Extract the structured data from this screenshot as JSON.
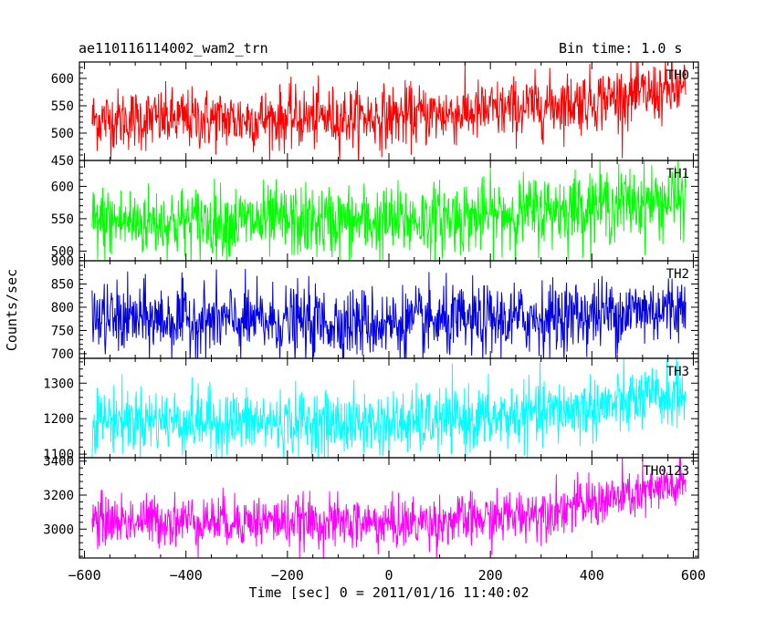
{
  "header": {
    "title": "ae110116114002_wam2_trn",
    "bin_time": "Bin time: 1.0 s"
  },
  "chart_data": {
    "type": "line",
    "xlabel": "Time [sec] 0 = 2011/01/16 11:40:02",
    "ylabel": "Counts/sec",
    "xlim": [
      -610,
      610
    ],
    "x_ticks": [
      -600,
      -400,
      -200,
      0,
      200,
      400,
      600
    ],
    "x_range_data": [
      -585,
      585
    ],
    "bin_time_s": 1.0,
    "panels": [
      {
        "name": "TH0",
        "color": "#ff0000",
        "ylim": [
          450,
          630
        ],
        "y_ticks": [
          450,
          500,
          550,
          600
        ],
        "trend": [
          [
            -585,
            525
          ],
          [
            -300,
            525
          ],
          [
            0,
            530
          ],
          [
            200,
            540
          ],
          [
            400,
            560
          ],
          [
            585,
            580
          ]
        ],
        "noise": 28
      },
      {
        "name": "TH1",
        "color": "#00ff00",
        "ylim": [
          485,
          640
        ],
        "y_ticks": [
          500,
          550,
          600
        ],
        "trend": [
          [
            -585,
            545
          ],
          [
            -300,
            545
          ],
          [
            0,
            545
          ],
          [
            200,
            555
          ],
          [
            400,
            570
          ],
          [
            585,
            580
          ]
        ],
        "noise": 28
      },
      {
        "name": "TH2",
        "color": "#0000e0",
        "ylim": [
          690,
          900
        ],
        "y_ticks": [
          700,
          750,
          800,
          850,
          900
        ],
        "trend": [
          [
            -585,
            775
          ],
          [
            -300,
            770
          ],
          [
            0,
            765
          ],
          [
            200,
            770
          ],
          [
            400,
            785
          ],
          [
            585,
            800
          ]
        ],
        "noise": 38
      },
      {
        "name": "TH3",
        "color": "#00ffff",
        "ylim": [
          1090,
          1370
        ],
        "y_ticks": [
          1100,
          1200,
          1300
        ],
        "trend": [
          [
            -585,
            1200
          ],
          [
            -300,
            1190
          ],
          [
            0,
            1185
          ],
          [
            200,
            1200
          ],
          [
            400,
            1230
          ],
          [
            585,
            1270
          ]
        ],
        "noise": 45
      },
      {
        "name": "TH0123",
        "color": "#ff00ff",
        "ylim": [
          2830,
          3420
        ],
        "y_ticks": [
          3000,
          3200,
          3400
        ],
        "trend": [
          [
            -585,
            3050
          ],
          [
            -300,
            3050
          ],
          [
            0,
            3030
          ],
          [
            200,
            3060
          ],
          [
            400,
            3150
          ],
          [
            585,
            3260
          ]
        ],
        "noise": 75
      }
    ]
  }
}
